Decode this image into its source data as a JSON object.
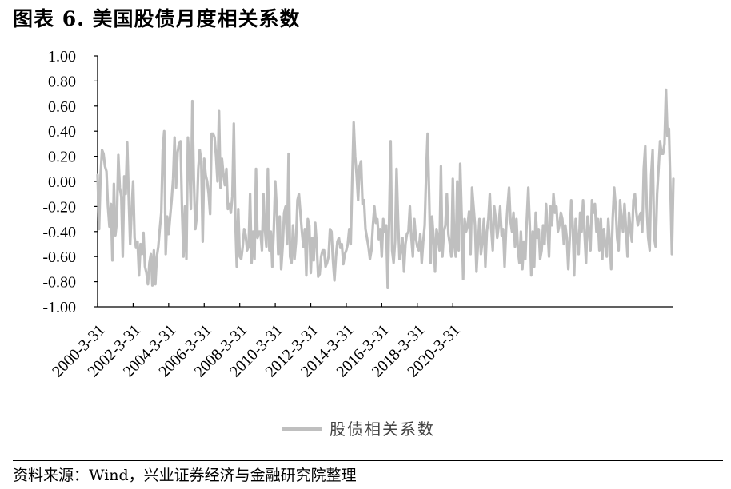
{
  "title": "图表 6.  美国股债月度相关系数",
  "source": "资料来源：Wind，兴业证券经济与金融研究院整理",
  "chart_data": {
    "type": "line",
    "title": "",
    "xlabel": "",
    "ylabel": "",
    "ylim": [
      -1.0,
      1.0
    ],
    "yticks": [
      "1.00",
      "0.80",
      "0.60",
      "0.40",
      "0.20",
      "0.00",
      "-0.20",
      "-0.40",
      "-0.60",
      "-0.80",
      "-1.00"
    ],
    "xticks": [
      "2000-3-31",
      "2002-3-31",
      "2004-3-31",
      "2006-3-31",
      "2008-3-31",
      "2010-3-31",
      "2012-3-31",
      "2014-3-31",
      "2016-3-31",
      "2018-3-31",
      "2020-3-31"
    ],
    "x_start": "2000-03",
    "frequency": "monthly",
    "grid": false,
    "legend_position": "bottom-center",
    "series": [
      {
        "name": "股债相关系数",
        "color": "#BFBFBF",
        "values": [
          0.05,
          -0.38,
          0.05,
          0.25,
          0.22,
          0.12,
          0.08,
          -0.2,
          -0.36,
          -0.18,
          -0.63,
          -0.02,
          -0.43,
          -0.32,
          0.21,
          -0.05,
          -0.12,
          -0.6,
          0.04,
          -0.1,
          0.31,
          -0.12,
          -0.5,
          -0.22,
          0.0,
          -0.45,
          -0.53,
          -0.48,
          -0.75,
          -0.5,
          -0.58,
          -0.41,
          -0.68,
          -0.73,
          -0.82,
          -0.65,
          -0.58,
          -0.83,
          -0.55,
          -0.82,
          -0.6,
          -0.52,
          -0.38,
          -0.25,
          0.25,
          0.4,
          -0.58,
          -0.28,
          -0.42,
          -0.28,
          -0.15,
          0.02,
          0.35,
          -0.05,
          0.23,
          0.3,
          0.32,
          -0.22,
          -0.6,
          -0.2,
          -0.62,
          0.35,
          0.15,
          -0.22,
          0.64,
          0.02,
          -0.38,
          -0.28,
          0.1,
          0.25,
          0.16,
          -0.48,
          0.18,
          0.05,
          0.0,
          -0.1,
          -0.26,
          0.38,
          0.38,
          0.35,
          0.2,
          0.0,
          0.56,
          -0.05,
          0.18,
          0.05,
          -0.03,
          0.1,
          -0.22,
          -0.18,
          -0.25,
          -0.12,
          0.46,
          -0.3,
          -0.68,
          -0.22,
          -0.6,
          -0.62,
          -0.52,
          -0.38,
          -0.43,
          -0.55,
          -0.52,
          -0.1,
          -0.65,
          -0.4,
          -0.62,
          0.1,
          -0.45,
          -0.4,
          -0.4,
          -0.55,
          -0.1,
          -0.38,
          -0.52,
          0.1,
          -0.55,
          -0.4,
          -0.68,
          -0.38,
          0.0,
          -0.22,
          -0.58,
          -0.28,
          -0.7,
          -0.52,
          -0.25,
          -0.2,
          -0.5,
          0.22,
          -0.6,
          -0.65,
          -0.35,
          -0.62,
          -0.48,
          -0.15,
          -0.1,
          -0.25,
          -0.4,
          -0.52,
          -0.38,
          -0.75,
          -0.3,
          -0.35,
          -0.73,
          -0.45,
          -0.63,
          -0.33,
          -0.5,
          -0.76,
          -0.74,
          -0.6,
          -0.55,
          -0.55,
          -0.68,
          -0.65,
          -0.6,
          -0.38,
          -0.4,
          -0.63,
          -0.79,
          -0.6,
          -0.48,
          -0.45,
          -0.53,
          -0.5,
          -0.66,
          -0.58,
          -0.55,
          -0.5,
          -0.38,
          -0.5,
          0.0,
          0.47,
          0.2,
          0.05,
          -0.15,
          0.12,
          0.16,
          -0.18,
          -0.15,
          -0.38,
          -0.45,
          -0.52,
          -0.62,
          -0.55,
          -0.35,
          -0.2,
          -0.33,
          -0.3,
          -0.46,
          -0.38,
          -0.6,
          -0.3,
          -0.4,
          -0.35,
          -0.85,
          -0.3,
          0.32,
          -0.55,
          -0.65,
          -0.48,
          0.1,
          -0.3,
          -0.62,
          -0.55,
          -0.45,
          -0.72,
          -0.5,
          -0.42,
          -0.4,
          -0.2,
          -0.45,
          -0.6,
          -0.3,
          -0.45,
          -0.52,
          -0.55,
          -0.42,
          -0.65,
          -0.48,
          -0.35,
          0.06,
          0.38,
          -0.1,
          -0.65,
          -0.28,
          -0.45,
          -0.72,
          -0.38,
          -0.45,
          -0.55,
          0.12,
          -0.6,
          -0.4,
          -0.35,
          -0.1,
          -0.42,
          -0.5,
          -0.6,
          0.02,
          -0.5,
          -0.6,
          0.0,
          -0.55,
          0.14,
          -0.28,
          -0.78,
          -0.3,
          -0.4,
          -0.35,
          -0.24,
          -0.58,
          -0.05,
          -0.2,
          -0.35,
          -0.72,
          -0.5,
          -0.3,
          -0.58,
          -0.48,
          -0.3,
          -0.68,
          -0.4,
          -0.3,
          -0.1,
          -0.38,
          -0.55,
          -0.2,
          -0.3,
          -0.45,
          -0.35,
          -0.2,
          -0.43,
          -0.38,
          -0.68,
          -0.38,
          -0.2,
          -0.05,
          -0.32,
          -0.4,
          -0.25,
          -0.52,
          -0.3,
          -0.55,
          -0.65,
          -0.4,
          -0.7,
          -0.48,
          -0.62,
          -0.3,
          -0.05,
          -0.35,
          -0.75,
          -0.4,
          -0.68,
          -0.25,
          -0.45,
          -0.38,
          -0.62,
          -0.55,
          -0.35,
          -0.5,
          -0.18,
          -0.38,
          -0.6,
          -0.2,
          -0.35,
          -0.1,
          -0.25,
          -0.2,
          -0.4,
          -0.35,
          -0.25,
          -0.3,
          -0.5,
          -0.35,
          -0.45,
          -0.7,
          -0.45,
          -0.15,
          -0.35,
          -0.75,
          -0.3,
          -0.45,
          -0.58,
          -0.25,
          -0.4,
          -0.15,
          -0.42,
          -0.65,
          -0.28,
          -0.4,
          -0.55,
          -0.15,
          -0.25,
          -0.18,
          -0.4,
          -0.3,
          -0.55,
          -0.3,
          -0.62,
          -0.38,
          -0.5,
          -0.6,
          -0.3,
          -0.48,
          -0.7,
          -0.3,
          -0.05,
          -0.2,
          -0.45,
          -0.55,
          -0.15,
          -0.3,
          -0.4,
          -0.18,
          -0.38,
          -0.6,
          -0.25,
          -0.38,
          -0.48,
          -0.15,
          -0.1,
          -0.25,
          -0.35,
          -0.28,
          -0.25,
          -0.4,
          0.1,
          0.28,
          -0.2,
          -0.45,
          -0.55,
          0.05,
          0.25,
          -0.45,
          -0.52,
          -0.1,
          0.1,
          0.32,
          0.22,
          0.22,
          0.3,
          0.73,
          0.36,
          0.42,
          -0.05,
          -0.58,
          0.02
        ]
      }
    ]
  }
}
